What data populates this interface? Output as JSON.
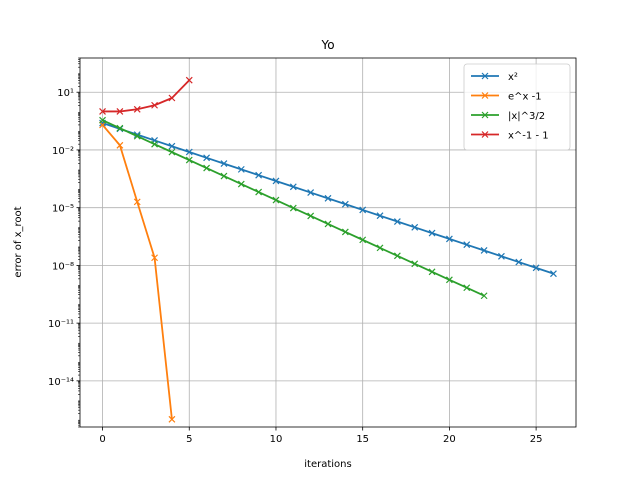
{
  "chart_data": {
    "type": "line",
    "title": "Yo",
    "xlabel": "iterations",
    "ylabel": "error of x_root",
    "yscale": "log",
    "xlim": [
      -1.3,
      27.3
    ],
    "ylim": [
      4e-17,
      600
    ],
    "xticks": [
      0,
      5,
      10,
      15,
      20,
      25
    ],
    "xtick_labels": [
      "0",
      "5",
      "10",
      "15",
      "20",
      "25"
    ],
    "yticks": [
      1e-14,
      1e-11,
      1e-08,
      1e-05,
      0.01,
      10
    ],
    "ytick_labels": [
      "10⁻¹⁴",
      "10⁻¹¹",
      "10⁻⁸",
      "10⁻⁵",
      "10⁻²",
      "10¹"
    ],
    "grid": true,
    "legend_position": "upper right",
    "marker": "x",
    "series": [
      {
        "name": "x²",
        "color": "#1f77b4",
        "x": [
          0,
          1,
          2,
          3,
          4,
          5,
          6,
          7,
          8,
          9,
          10,
          11,
          12,
          13,
          14,
          15,
          16,
          17,
          18,
          19,
          20,
          21,
          22,
          23,
          24,
          25,
          26
        ],
        "y": [
          0.25,
          0.125,
          0.0625,
          0.03125,
          0.015625,
          0.0078125,
          0.00390625,
          0.001953125,
          0.0009765625,
          0.00048828125,
          0.000244140625,
          0.0001220703125,
          6.103515625e-05,
          3.0517578125e-05,
          1.52587890625e-05,
          7.62939453125e-06,
          3.814697265625e-06,
          1.9073486328125e-06,
          9.5367431640625e-07,
          4.76837158203125e-07,
          2.384185791015625e-07,
          1.1920928955078125e-07,
          5.960464477539063e-08,
          2.9802322387695312e-08,
          1.4901161193847656e-08,
          7.450580596923828e-09,
          3.725290298461914e-09
        ]
      },
      {
        "name": "e^x -1",
        "color": "#ff7f0e",
        "x": [
          0,
          1,
          2,
          3,
          4
        ],
        "y": [
          0.2,
          0.0175,
          2e-05,
          2.5e-08,
          1e-16
        ]
      },
      {
        "name": "|x|^3/2",
        "color": "#2ca02c",
        "x": [
          0,
          1,
          2,
          3,
          4,
          5,
          6,
          7,
          8,
          9,
          10,
          11,
          12,
          13,
          14,
          15,
          16,
          17,
          18,
          19,
          20,
          21,
          22
        ],
        "y": [
          0.35,
          0.135,
          0.052,
          0.02,
          0.0077,
          0.00297,
          0.00114,
          0.00044,
          0.000169,
          6.5e-05,
          2.5e-05,
          9.6e-06,
          3.7e-06,
          1.43e-06,
          5.5e-07,
          2.12e-07,
          8.15e-08,
          3.14e-08,
          1.21e-08,
          4.65e-09,
          1.79e-09,
          6.9e-10,
          2.65e-10
        ]
      },
      {
        "name": "x^-1 - 1",
        "color": "#d62728",
        "x": [
          0,
          1,
          2,
          3,
          4,
          5
        ],
        "y": [
          1.0,
          1.0,
          1.3,
          2.1,
          5.0,
          42.0
        ]
      }
    ]
  }
}
